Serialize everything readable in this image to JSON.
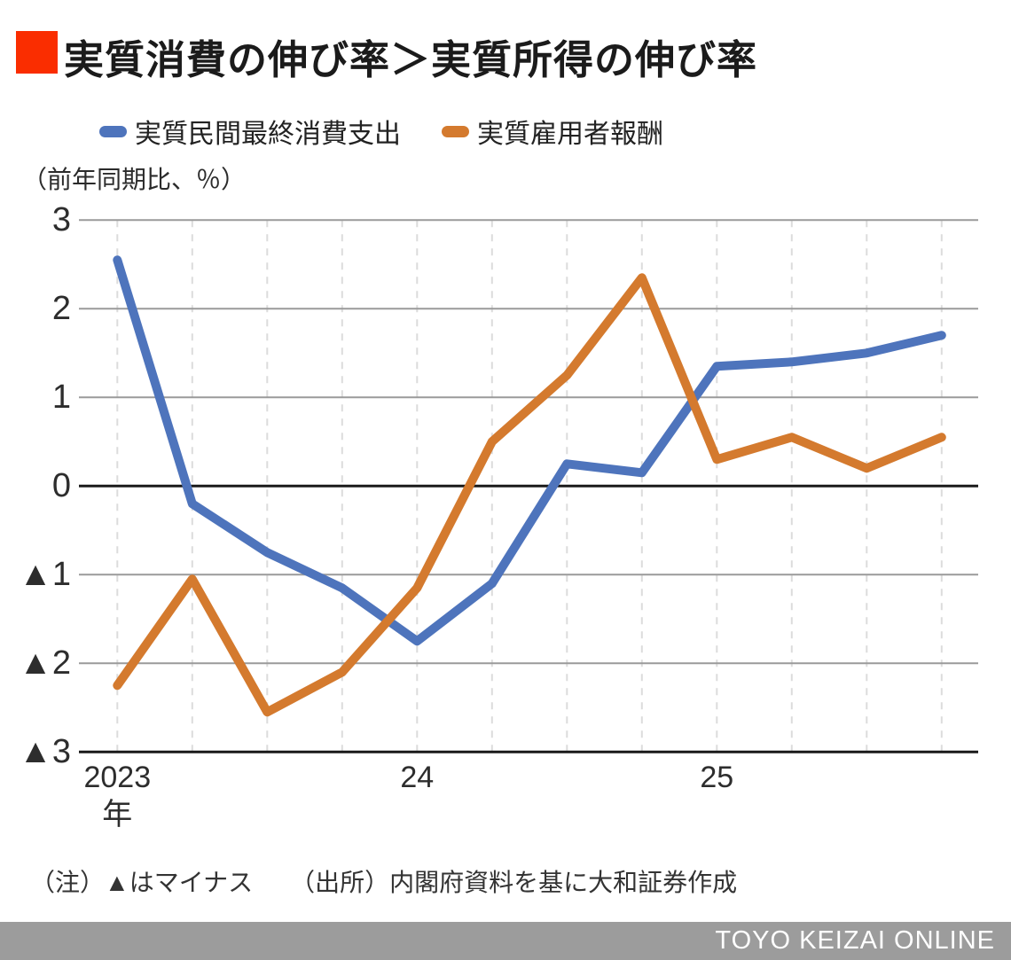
{
  "title": "実質消費の伸び率＞実質所得の伸び率",
  "accent_red": "#fa2d00",
  "legend": {
    "items": [
      {
        "label": "実質民間最終消費支出",
        "color": "#4e74bc"
      },
      {
        "label": "実質雇用者報酬",
        "color": "#d47a2e"
      }
    ]
  },
  "unit_label": "（前年同期比、％）",
  "note": "（注）▲はマイナス　　（出所）内閣府資料を基に大和証券作成",
  "footer": {
    "brand": "TOYO KEIZAI ONLINE",
    "bg": "#9c9c9c"
  },
  "chart_data": {
    "type": "line",
    "categories": [
      "2023Q1",
      "2023Q2",
      "2023Q3",
      "2023Q4",
      "2024Q1",
      "2024Q2",
      "2024Q3",
      "2024Q4",
      "2025Q1",
      "2025Q2",
      "2025Q3",
      "2025Q4"
    ],
    "series": [
      {
        "name": "実質民間最終消費支出",
        "color": "#4e74bc",
        "values": [
          2.55,
          -0.2,
          -0.75,
          -1.15,
          -1.75,
          -1.1,
          0.25,
          0.15,
          1.35,
          1.4,
          1.5,
          1.7
        ]
      },
      {
        "name": "実質雇用者報酬",
        "color": "#d47a2e",
        "values": [
          -2.25,
          -1.05,
          -2.55,
          -2.1,
          -1.15,
          0.5,
          1.25,
          2.35,
          0.3,
          0.55,
          0.2,
          0.55
        ]
      }
    ],
    "title": "実質消費の伸び率＞実質所得の伸び率",
    "xlabel": "",
    "ylabel": "（前年同期比、％）",
    "ylim": [
      -3,
      3
    ],
    "yticks": [
      {
        "value": 3,
        "label": "3"
      },
      {
        "value": 2,
        "label": "2"
      },
      {
        "value": 1,
        "label": "1"
      },
      {
        "value": 0,
        "label": "0"
      },
      {
        "value": -1,
        "label": "▲1"
      },
      {
        "value": -2,
        "label": "▲2"
      },
      {
        "value": -3,
        "label": "▲3"
      }
    ],
    "xticks": [
      {
        "index": 0,
        "label": "2023",
        "sub": "年"
      },
      {
        "index": 4,
        "label": "24"
      },
      {
        "index": 8,
        "label": "25"
      }
    ],
    "negative_marker_note": "▲はマイナス",
    "grid": {
      "horizontal": "solid",
      "vertical": "dashed",
      "grid_color": "#9a9a9a",
      "dashed_color": "#dcdcdc",
      "axis_color": "#1a1a1a"
    },
    "legend_position": "top"
  }
}
